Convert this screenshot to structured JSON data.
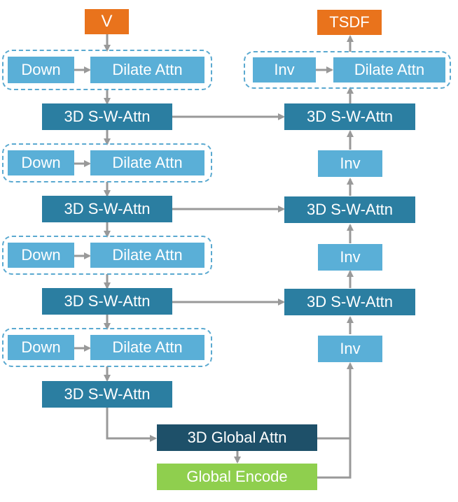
{
  "colors": {
    "input": "#e9731c",
    "output": "#e9731c",
    "down": "#5aafd7",
    "dilate": "#5aafd7",
    "swattn": "#2b7ea1",
    "inv": "#5aafd7",
    "global_attn": "#1e5069",
    "global_encode": "#8fcf4e",
    "arrow": "#999999",
    "group_border": "#5aa9d0"
  },
  "diagram": {
    "input_label": "V",
    "output_label": "TSDF",
    "down_label": "Down",
    "dilate_label": "Dilate Attn",
    "swattn_label": "3D S-W-Attn",
    "inv_label": "Inv",
    "global_attn_label": "3D Global Attn",
    "global_encode_label": "Global Encode"
  }
}
